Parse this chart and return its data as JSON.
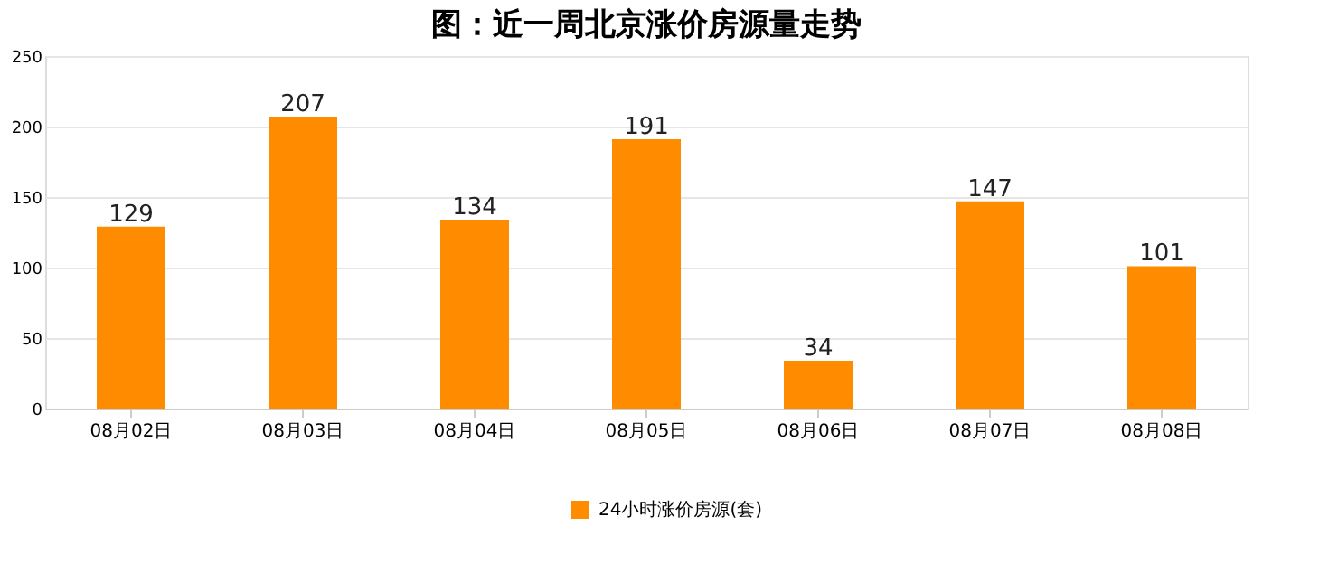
{
  "chart_data": {
    "type": "bar",
    "title": "图：近一周北京涨价房源量走势",
    "categories": [
      "08月02日",
      "08月03日",
      "08月04日",
      "08月05日",
      "08月06日",
      "08月07日",
      "08月08日"
    ],
    "series": [
      {
        "name": "24小时涨价房源(套)",
        "color": "#ff8c00",
        "values": [
          129,
          207,
          134,
          191,
          34,
          147,
          101
        ]
      }
    ],
    "ylim": [
      0,
      250
    ],
    "yticks": [
      0,
      50,
      100,
      150,
      200,
      250
    ],
    "grid": "y",
    "legend": "bottom",
    "data_labels": true
  }
}
